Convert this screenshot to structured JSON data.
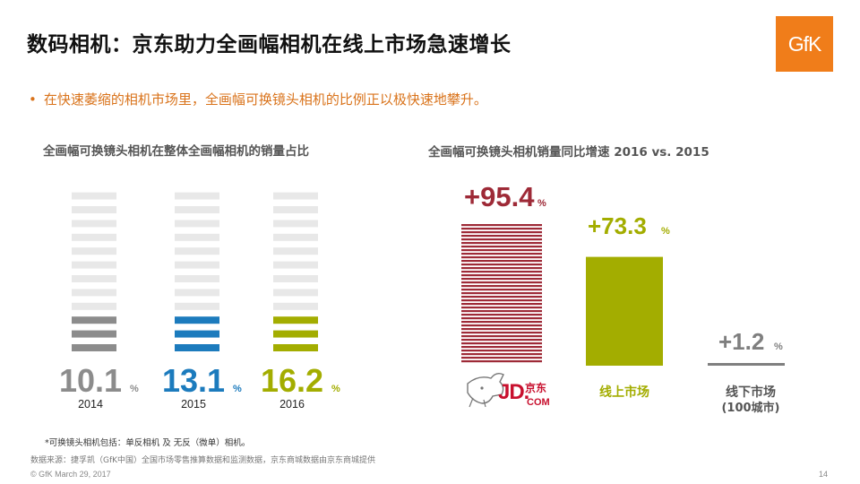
{
  "title": "数码相机：京东助力全画幅相机在线上市场急速增长",
  "logo_text": "GfK",
  "bullet": "在快速萎缩的相机市场里，全画幅可换镜头相机的比例正以极快速地攀升。",
  "colors": {
    "gray": "#8c8c8c",
    "blue": "#1c7bbd",
    "olive": "#a3ad00",
    "stripe_bg": "#e8e8e8",
    "jd_red": "#9e2a37",
    "orange": "#f07d1a"
  },
  "chart_data": [
    {
      "type": "bar",
      "title": "全画幅可换镜头相机在整体全画幅相机的销量占比",
      "categories": [
        "2014",
        "2015",
        "2016"
      ],
      "values": [
        10.1,
        13.1,
        16.2
      ],
      "value_suffix": "%",
      "ylim": [
        0,
        100
      ],
      "series_colors": [
        "#8c8c8c",
        "#1c7bbd",
        "#a3ad00"
      ]
    },
    {
      "type": "bar",
      "title": "全画幅可换镜头相机销量同比增速 2016 vs. 2015",
      "categories": [
        "JD.COM 京东",
        "线上市场",
        "线下市场（100城市）"
      ],
      "values": [
        95.4,
        73.3,
        1.2
      ],
      "value_labels": [
        "+95.4",
        "+73.3",
        "+1.2"
      ],
      "value_suffix": "%",
      "series_colors": [
        "#9e2a37",
        "#a3ad00",
        "#7f7f7f"
      ]
    }
  ],
  "right_labels": {
    "jd_logo_text": "JD.COM",
    "jd_logo_cn": "京东",
    "online": "线上市场",
    "offline_line1": "线下市场",
    "offline_line2": "(100城市)"
  },
  "note": "*可换镜头相机包括：单反相机 及 无反（微单）相机。",
  "source": "数据来源：捷孚凯（GfK中国）全国市场零售推算数据和监测数据，京东商城数据由京东商城提供",
  "footer": "© GfK March 29, 2017",
  "page_number": "14"
}
